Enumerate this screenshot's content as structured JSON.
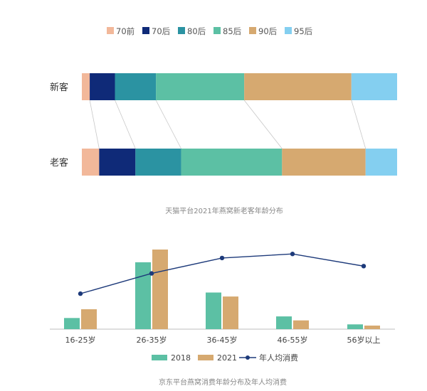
{
  "chart_data": [
    {
      "type": "bar",
      "stacked": true,
      "orientation": "horizontal",
      "categories": [
        "新客",
        "老客"
      ],
      "series": [
        {
          "name": "70前",
          "color": "#f2b89a",
          "values": [
            2.5,
            5.5
          ]
        },
        {
          "name": "70后",
          "color": "#0f2a78",
          "values": [
            8.0,
            11.5
          ]
        },
        {
          "name": "80后",
          "color": "#2b93a2",
          "values": [
            13.0,
            14.5
          ]
        },
        {
          "name": "85后",
          "color": "#5cc0a4",
          "values": [
            28.0,
            32.0
          ]
        },
        {
          "name": "90后",
          "color": "#d6a970",
          "values": [
            34.0,
            26.5
          ]
        },
        {
          "name": "95后",
          "color": "#84cff0",
          "values": [
            14.5,
            10.0
          ]
        }
      ],
      "title": "天猫平台2021年燕窝新老客年龄分布",
      "legend_position": "top",
      "grid": false
    },
    {
      "type": "bar",
      "categories": [
        "16-25岁",
        "26-35岁",
        "36-45岁",
        "46-55岁",
        "56岁以上"
      ],
      "series": [
        {
          "name": "2018",
          "type": "bar",
          "color": "#5cc0a4",
          "values": [
            0.14,
            0.84,
            0.46,
            0.16,
            0.06
          ]
        },
        {
          "name": "2021",
          "type": "bar",
          "color": "#d6a970",
          "values": [
            0.25,
            1.0,
            0.41,
            0.11,
            0.045
          ]
        },
        {
          "name": "年人均消费",
          "type": "line",
          "color": "#1d3a7a",
          "values": [
            0.28,
            0.53,
            0.72,
            0.77,
            0.62
          ]
        }
      ],
      "title": "京东平台燕窝消费年龄分布及年人均消费",
      "legend_position": "bottom",
      "grid": false
    }
  ]
}
